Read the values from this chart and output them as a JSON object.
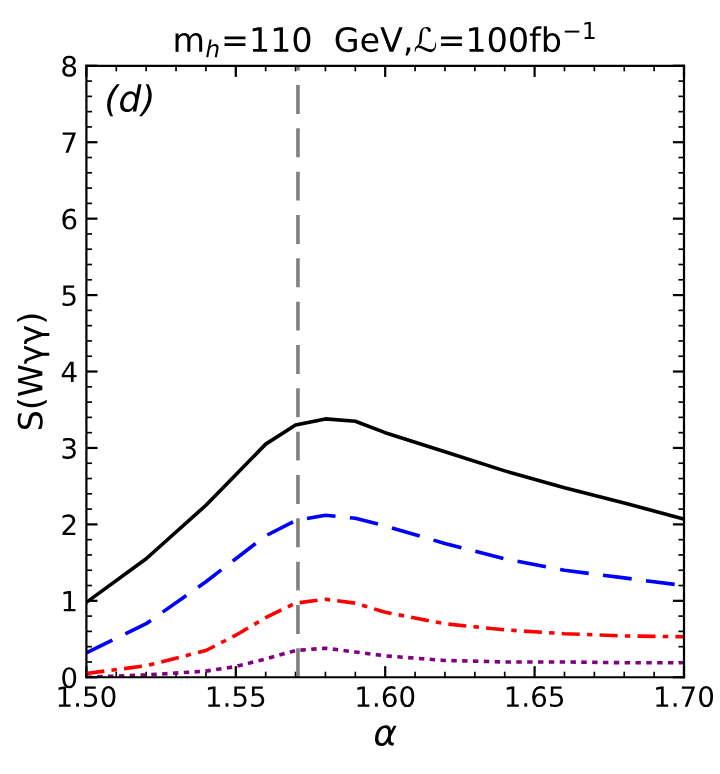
{
  "chart_data": {
    "type": "line",
    "title": "m$_{h}$=110  GeV,ℒ=100fb$^{−1}$",
    "xlabel": "α",
    "ylabel": "S(Wγγ)",
    "annotations": [
      "(d)"
    ],
    "x": [
      1.5,
      1.52,
      1.54,
      1.55,
      1.56,
      1.57,
      1.58,
      1.59,
      1.6,
      1.62,
      1.64,
      1.66,
      1.68,
      1.7
    ],
    "series": [
      {
        "color": "#000000",
        "line_style": "solid",
        "values": [
          0.98,
          1.55,
          2.25,
          2.65,
          3.05,
          3.3,
          3.38,
          3.35,
          3.2,
          2.95,
          2.7,
          2.48,
          2.28,
          2.07
        ]
      },
      {
        "color": "#0000ff",
        "line_style": "dashed",
        "values": [
          0.32,
          0.7,
          1.25,
          1.55,
          1.85,
          2.05,
          2.12,
          2.08,
          1.98,
          1.75,
          1.55,
          1.4,
          1.3,
          1.2
        ]
      },
      {
        "color": "#ff0000",
        "line_style": "dashdot",
        "values": [
          0.05,
          0.15,
          0.35,
          0.55,
          0.78,
          0.97,
          1.02,
          0.97,
          0.85,
          0.7,
          0.62,
          0.57,
          0.54,
          0.53
        ]
      },
      {
        "color": "#800080",
        "line_style": "dotted",
        "values": [
          0.0,
          0.03,
          0.08,
          0.14,
          0.24,
          0.35,
          0.38,
          0.33,
          0.28,
          0.22,
          0.2,
          0.2,
          0.19,
          0.19
        ]
      }
    ],
    "ref_lines": [
      {
        "axis": "x",
        "value": 1.5708,
        "color": "#808080",
        "line_style": "dashed"
      }
    ],
    "xlim": [
      1.5,
      1.7
    ],
    "ylim": [
      0,
      8
    ],
    "xticks": [
      {
        "value": 1.5,
        "label": "1.50"
      },
      {
        "value": 1.55,
        "label": "1.55"
      },
      {
        "value": 1.6,
        "label": "1.60"
      },
      {
        "value": 1.65,
        "label": "1.65"
      },
      {
        "value": 1.7,
        "label": "1.70"
      }
    ],
    "yticks": [
      0,
      1,
      2,
      3,
      4,
      5,
      6,
      7,
      8
    ],
    "grid": false,
    "legend": false
  }
}
